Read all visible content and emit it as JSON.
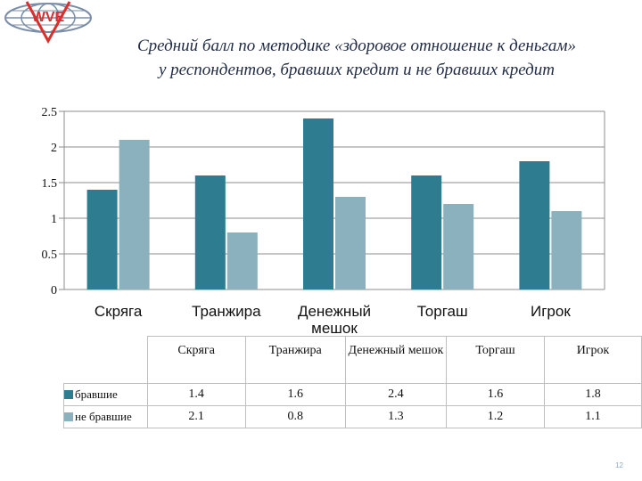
{
  "slide": {
    "title_line1": "Средний балл по методике «здоровое отношение к деньгам»",
    "title_line2": "у респондентов, бравших кредит и не бравших кредит",
    "page_number": "12",
    "logo_text": "WVE"
  },
  "chart_data": {
    "type": "bar",
    "title": "Средний балл по методике «здоровое отношение к деньгам» у респондентов, бравших кредит и не бравших кредит",
    "categories": [
      "Скряга",
      "Транжира",
      "Денежный мешок",
      "Торгаш",
      "Игрок"
    ],
    "category_lines": [
      [
        "Скряга"
      ],
      [
        "Транжира"
      ],
      [
        "Денежный",
        "мешок"
      ],
      [
        "Торгаш"
      ],
      [
        "Игрок"
      ]
    ],
    "series": [
      {
        "name": "бравшие",
        "values": [
          1.4,
          1.6,
          2.4,
          1.6,
          1.8
        ],
        "color": "#2e7c8f"
      },
      {
        "name": "не бравшие",
        "values": [
          2.1,
          0.8,
          1.3,
          1.2,
          1.1
        ],
        "color": "#8cb1be"
      }
    ],
    "y_ticks": [
      "0",
      "0.5",
      "1",
      "1.5",
      "2",
      "2.5"
    ],
    "ylim": [
      0,
      2.5
    ],
    "grid": true,
    "legend": "data table below chart",
    "xlabel": "",
    "ylabel": ""
  },
  "table": {
    "headers": [
      "Скряга",
      "Транжира",
      "Денежный мешок",
      "Торгаш",
      "Игрок"
    ],
    "rows": [
      {
        "label": "бравшие",
        "values": [
          "1.4",
          "1.6",
          "2.4",
          "1.6",
          "1.8"
        ]
      },
      {
        "label": "не бравшие",
        "values": [
          "2.1",
          "0.8",
          "1.3",
          "1.2",
          "1.1"
        ]
      }
    ]
  }
}
